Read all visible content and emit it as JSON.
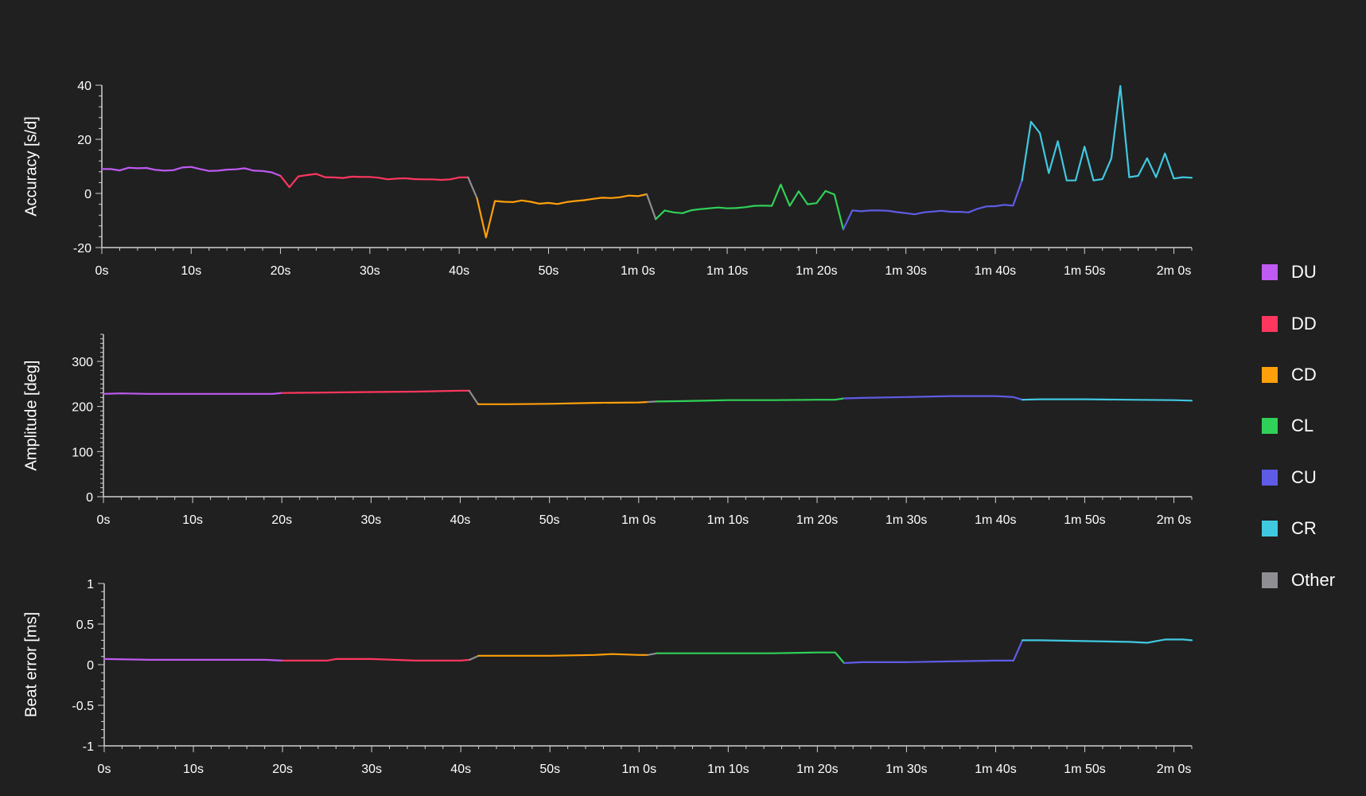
{
  "colors": {
    "background": "#202020",
    "axis": "#d0d0d0",
    "text": "#ffffff",
    "DU": "#bf5af2",
    "DD": "#ff375f",
    "CD": "#ff9f0a",
    "CL": "#30d158",
    "CU": "#5e5ce6",
    "CR": "#40c8e0",
    "Other": "#8e8e93"
  },
  "legend": {
    "items": [
      {
        "key": "DU",
        "label": "DU"
      },
      {
        "key": "DD",
        "label": "DD"
      },
      {
        "key": "CD",
        "label": "CD"
      },
      {
        "key": "CL",
        "label": "CL"
      },
      {
        "key": "CU",
        "label": "CU"
      },
      {
        "key": "CR",
        "label": "CR"
      },
      {
        "key": "Other",
        "label": "Other"
      }
    ]
  },
  "chart_data": [
    {
      "type": "line",
      "ylabel": "Accuracy [s/d]",
      "xlabel": "",
      "xlim": [
        0,
        122
      ],
      "ylim": [
        -20,
        40
      ],
      "y_ticks": [
        -20,
        0,
        20,
        40
      ],
      "y_tick_labels": [
        "-20",
        "0",
        "20",
        "40"
      ],
      "x_ticks": [
        0,
        10,
        20,
        30,
        40,
        50,
        60,
        70,
        80,
        90,
        100,
        110,
        120
      ],
      "x_tick_labels": [
        "0s",
        "10s",
        "20s",
        "30s",
        "40s",
        "50s",
        "1m 0s",
        "1m 10s",
        "1m 20s",
        "1m 30s",
        "1m 40s",
        "1m 50s",
        "2m 0s"
      ],
      "series": [
        {
          "key": "DU",
          "x": [
            0,
            1,
            2,
            3,
            4,
            5,
            6,
            7,
            8,
            9,
            10,
            11,
            12,
            13,
            14,
            15,
            16,
            17,
            18,
            19,
            20
          ],
          "y": [
            9,
            9,
            8.5,
            9.5,
            9.3,
            9.4,
            8.7,
            8.4,
            8.6,
            9.6,
            9.8,
            9,
            8.3,
            8.4,
            8.8,
            8.9,
            9.3,
            8.4,
            8.3,
            7.8,
            6.5
          ]
        },
        {
          "key": "DD",
          "x": [
            20,
            21,
            22,
            23,
            24,
            25,
            26,
            27,
            28,
            29,
            30,
            31,
            32,
            33,
            34,
            35,
            36,
            37,
            38,
            39,
            40,
            41
          ],
          "y": [
            6.5,
            2.3,
            6.3,
            6.8,
            7.2,
            6,
            5.9,
            5.7,
            6.2,
            6.1,
            6.1,
            5.8,
            5.2,
            5.5,
            5.6,
            5.3,
            5.2,
            5.2,
            5,
            5.2,
            5.9,
            5.9
          ]
        },
        {
          "key": "Other",
          "x": [
            41,
            42
          ],
          "y": [
            5.9,
            -1.8
          ]
        },
        {
          "key": "CD",
          "x": [
            42,
            43,
            44,
            45,
            46,
            47,
            48,
            49,
            50,
            51,
            52,
            53,
            54,
            55,
            56,
            57,
            58,
            59,
            60,
            61
          ],
          "y": [
            -1.8,
            -16.3,
            -2.8,
            -3.1,
            -3.2,
            -2.6,
            -3.1,
            -3.8,
            -3.5,
            -3.9,
            -3.2,
            -2.8,
            -2.5,
            -2,
            -1.6,
            -1.7,
            -1.4,
            -0.8,
            -1,
            -0.3
          ]
        },
        {
          "key": "Other",
          "x": [
            61,
            62
          ],
          "y": [
            -0.3,
            -9.5
          ]
        },
        {
          "key": "CL",
          "x": [
            62,
            63,
            64,
            65,
            66,
            67,
            68,
            69,
            70,
            71,
            72,
            73,
            74,
            75,
            76,
            77,
            78,
            79,
            80,
            81,
            82,
            83
          ],
          "y": [
            -9.5,
            -6.3,
            -7,
            -7.3,
            -6.2,
            -5.8,
            -5.5,
            -5.2,
            -5.5,
            -5.4,
            -5.1,
            -4.6,
            -4.5,
            -4.6,
            3.3,
            -4.6,
            0.8,
            -4,
            -3.6,
            0.9,
            -0.4,
            -13.3
          ]
        },
        {
          "key": "CU",
          "x": [
            83,
            84,
            85,
            86,
            87,
            88,
            89,
            90,
            91,
            92,
            93,
            94,
            95,
            96,
            97,
            98,
            99,
            100,
            101,
            102,
            103
          ],
          "y": [
            -13.3,
            -6.3,
            -6.6,
            -6.3,
            -6.3,
            -6.4,
            -6.9,
            -7.3,
            -7.7,
            -7,
            -6.7,
            -6.4,
            -6.8,
            -6.8,
            -7,
            -5.7,
            -4.8,
            -4.7,
            -4.2,
            -4.5,
            4.8
          ]
        },
        {
          "key": "CR",
          "x": [
            103,
            104,
            105,
            106,
            107,
            108,
            109,
            110,
            111,
            112,
            113,
            114,
            115,
            116,
            117,
            118,
            119,
            120,
            121,
            122
          ],
          "y": [
            4.8,
            26.5,
            22.3,
            7.5,
            19.3,
            4.8,
            4.8,
            17.3,
            4.8,
            5.3,
            12.9,
            39.7,
            6,
            6.5,
            13,
            6,
            14.8,
            5.5,
            6,
            5.8
          ]
        }
      ]
    },
    {
      "type": "line",
      "ylabel": "Amplitude [deg]",
      "xlabel": "",
      "xlim": [
        0,
        122
      ],
      "ylim": [
        0,
        360
      ],
      "y_ticks": [
        0,
        100,
        200,
        300
      ],
      "y_tick_labels": [
        "0",
        "100",
        "200",
        "300"
      ],
      "x_ticks": [
        0,
        10,
        20,
        30,
        40,
        50,
        60,
        70,
        80,
        90,
        100,
        110,
        120
      ],
      "x_tick_labels": [
        "0s",
        "10s",
        "20s",
        "30s",
        "40s",
        "50s",
        "1m 0s",
        "1m 10s",
        "1m 20s",
        "1m 30s",
        "1m 40s",
        "1m 50s",
        "2m 0s"
      ],
      "series": [
        {
          "key": "DU",
          "x": [
            0,
            2,
            5,
            10,
            15,
            19,
            20
          ],
          "y": [
            228,
            229,
            228,
            228,
            228,
            228,
            230
          ]
        },
        {
          "key": "DD",
          "x": [
            20,
            25,
            30,
            35,
            40,
            41
          ],
          "y": [
            230,
            231,
            232,
            233,
            235,
            235
          ]
        },
        {
          "key": "Other",
          "x": [
            41,
            42
          ],
          "y": [
            235,
            205
          ]
        },
        {
          "key": "CD",
          "x": [
            42,
            45,
            50,
            55,
            60,
            61
          ],
          "y": [
            205,
            205,
            206,
            208,
            209,
            210
          ]
        },
        {
          "key": "Other",
          "x": [
            61,
            62
          ],
          "y": [
            210,
            211
          ]
        },
        {
          "key": "CL",
          "x": [
            62,
            65,
            70,
            75,
            80,
            82,
            83
          ],
          "y": [
            211,
            212,
            214,
            214,
            215,
            215,
            218
          ]
        },
        {
          "key": "CU",
          "x": [
            83,
            85,
            90,
            95,
            100,
            102,
            103
          ],
          "y": [
            218,
            219,
            221,
            223,
            223,
            221,
            215
          ]
        },
        {
          "key": "CR",
          "x": [
            103,
            105,
            110,
            115,
            120,
            122
          ],
          "y": [
            215,
            216,
            216,
            215,
            214,
            213
          ]
        }
      ]
    },
    {
      "type": "line",
      "ylabel": "Beat error [ms]",
      "xlabel": "",
      "xlim": [
        0,
        122
      ],
      "ylim": [
        -1,
        1
      ],
      "y_ticks": [
        -1,
        -0.5,
        0,
        0.5,
        1
      ],
      "y_tick_labels": [
        "-1",
        "-0.5",
        "0",
        "0.5",
        "1"
      ],
      "x_ticks": [
        0,
        10,
        20,
        30,
        40,
        50,
        60,
        70,
        80,
        90,
        100,
        110,
        120
      ],
      "x_tick_labels": [
        "0s",
        "10s",
        "20s",
        "30s",
        "40s",
        "50s",
        "1m 0s",
        "1m 10s",
        "1m 20s",
        "1m 30s",
        "1m 40s",
        "1m 50s",
        "2m 0s"
      ],
      "series": [
        {
          "key": "DU",
          "x": [
            0,
            5,
            10,
            15,
            18,
            20
          ],
          "y": [
            0.07,
            0.06,
            0.06,
            0.06,
            0.06,
            0.05
          ]
        },
        {
          "key": "DD",
          "x": [
            20,
            25,
            26,
            30,
            35,
            38,
            40,
            41
          ],
          "y": [
            0.05,
            0.05,
            0.07,
            0.07,
            0.05,
            0.05,
            0.05,
            0.06
          ]
        },
        {
          "key": "Other",
          "x": [
            41,
            42
          ],
          "y": [
            0.06,
            0.11
          ]
        },
        {
          "key": "CD",
          "x": [
            42,
            45,
            50,
            55,
            57,
            60,
            61
          ],
          "y": [
            0.11,
            0.11,
            0.11,
            0.12,
            0.13,
            0.12,
            0.12
          ]
        },
        {
          "key": "Other",
          "x": [
            61,
            62
          ],
          "y": [
            0.12,
            0.14
          ]
        },
        {
          "key": "CL",
          "x": [
            62,
            65,
            70,
            75,
            80,
            82,
            83
          ],
          "y": [
            0.14,
            0.14,
            0.14,
            0.14,
            0.15,
            0.15,
            0.02
          ]
        },
        {
          "key": "CU",
          "x": [
            83,
            85,
            90,
            95,
            100,
            102,
            103
          ],
          "y": [
            0.02,
            0.03,
            0.03,
            0.04,
            0.05,
            0.05,
            0.3
          ]
        },
        {
          "key": "CR",
          "x": [
            103,
            105,
            110,
            115,
            117,
            118,
            119,
            120,
            121,
            122
          ],
          "y": [
            0.3,
            0.3,
            0.29,
            0.28,
            0.27,
            0.29,
            0.31,
            0.31,
            0.31,
            0.3
          ]
        }
      ]
    }
  ]
}
